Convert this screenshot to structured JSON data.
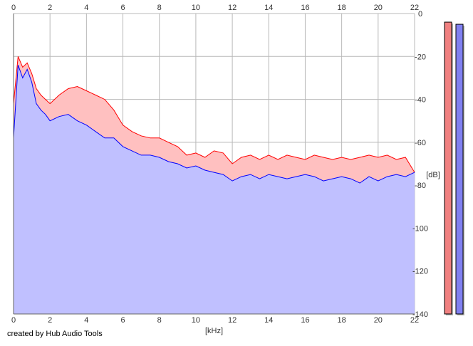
{
  "footer": {
    "credit": "created by Hub Audio Tools"
  },
  "chart_data": {
    "type": "area",
    "xlabel": "[kHz]",
    "ylabel": "[dB]",
    "xlim": [
      0,
      22
    ],
    "ylim": [
      -140,
      0
    ],
    "x_ticks": [
      "0",
      "2",
      "4",
      "6",
      "8",
      "10",
      "12",
      "14",
      "16",
      "18",
      "20",
      "22"
    ],
    "y_ticks": [
      "0",
      "-20",
      "-40",
      "-60",
      "-80",
      "-100",
      "-120",
      "-140"
    ],
    "grid": true,
    "x": [
      0.0,
      0.25,
      0.5,
      0.75,
      1.0,
      1.25,
      1.5,
      1.75,
      2.0,
      2.5,
      3.0,
      3.5,
      4.0,
      4.5,
      5.0,
      5.5,
      6.0,
      6.5,
      7.0,
      7.5,
      8.0,
      8.5,
      9.0,
      9.5,
      10.0,
      10.5,
      11.0,
      11.5,
      12.0,
      12.5,
      13.0,
      13.5,
      14.0,
      14.5,
      15.0,
      15.5,
      16.0,
      16.5,
      17.0,
      17.5,
      18.0,
      18.5,
      19.0,
      19.5,
      20.0,
      20.5,
      21.0,
      21.5,
      22.0
    ],
    "series": [
      {
        "color": "#ff0000",
        "fill": "#ffc0c0",
        "values": [
          -42,
          -20,
          -25,
          -23,
          -28,
          -35,
          -38,
          -40,
          -42,
          -38,
          -35,
          -34,
          -36,
          -38,
          -40,
          -45,
          -52,
          -55,
          -57,
          -58,
          -58,
          -60,
          -62,
          -66,
          -65,
          -67,
          -64,
          -65,
          -70,
          -67,
          -66,
          -68,
          -66,
          -68,
          -66,
          -67,
          -68,
          -66,
          -67,
          -68,
          -67,
          -68,
          -67,
          -66,
          -67,
          -66,
          -68,
          -67,
          -74
        ]
      },
      {
        "color": "#0000ff",
        "fill": "#c0c0ff",
        "values": [
          -58,
          -24,
          -30,
          -26,
          -32,
          -42,
          -45,
          -47,
          -50,
          -48,
          -47,
          -50,
          -52,
          -55,
          -58,
          -58,
          -62,
          -64,
          -66,
          -66,
          -67,
          -69,
          -70,
          -72,
          -71,
          -73,
          -74,
          -75,
          -78,
          -76,
          -75,
          -77,
          -75,
          -76,
          -77,
          -76,
          -75,
          -76,
          -78,
          -77,
          -76,
          -77,
          -79,
          -76,
          -78,
          -76,
          -75,
          -76,
          -74
        ]
      }
    ],
    "level_meters": [
      {
        "color": "#f08080",
        "level_db": -4
      },
      {
        "color": "#8080f0",
        "level_db": -5
      }
    ]
  }
}
